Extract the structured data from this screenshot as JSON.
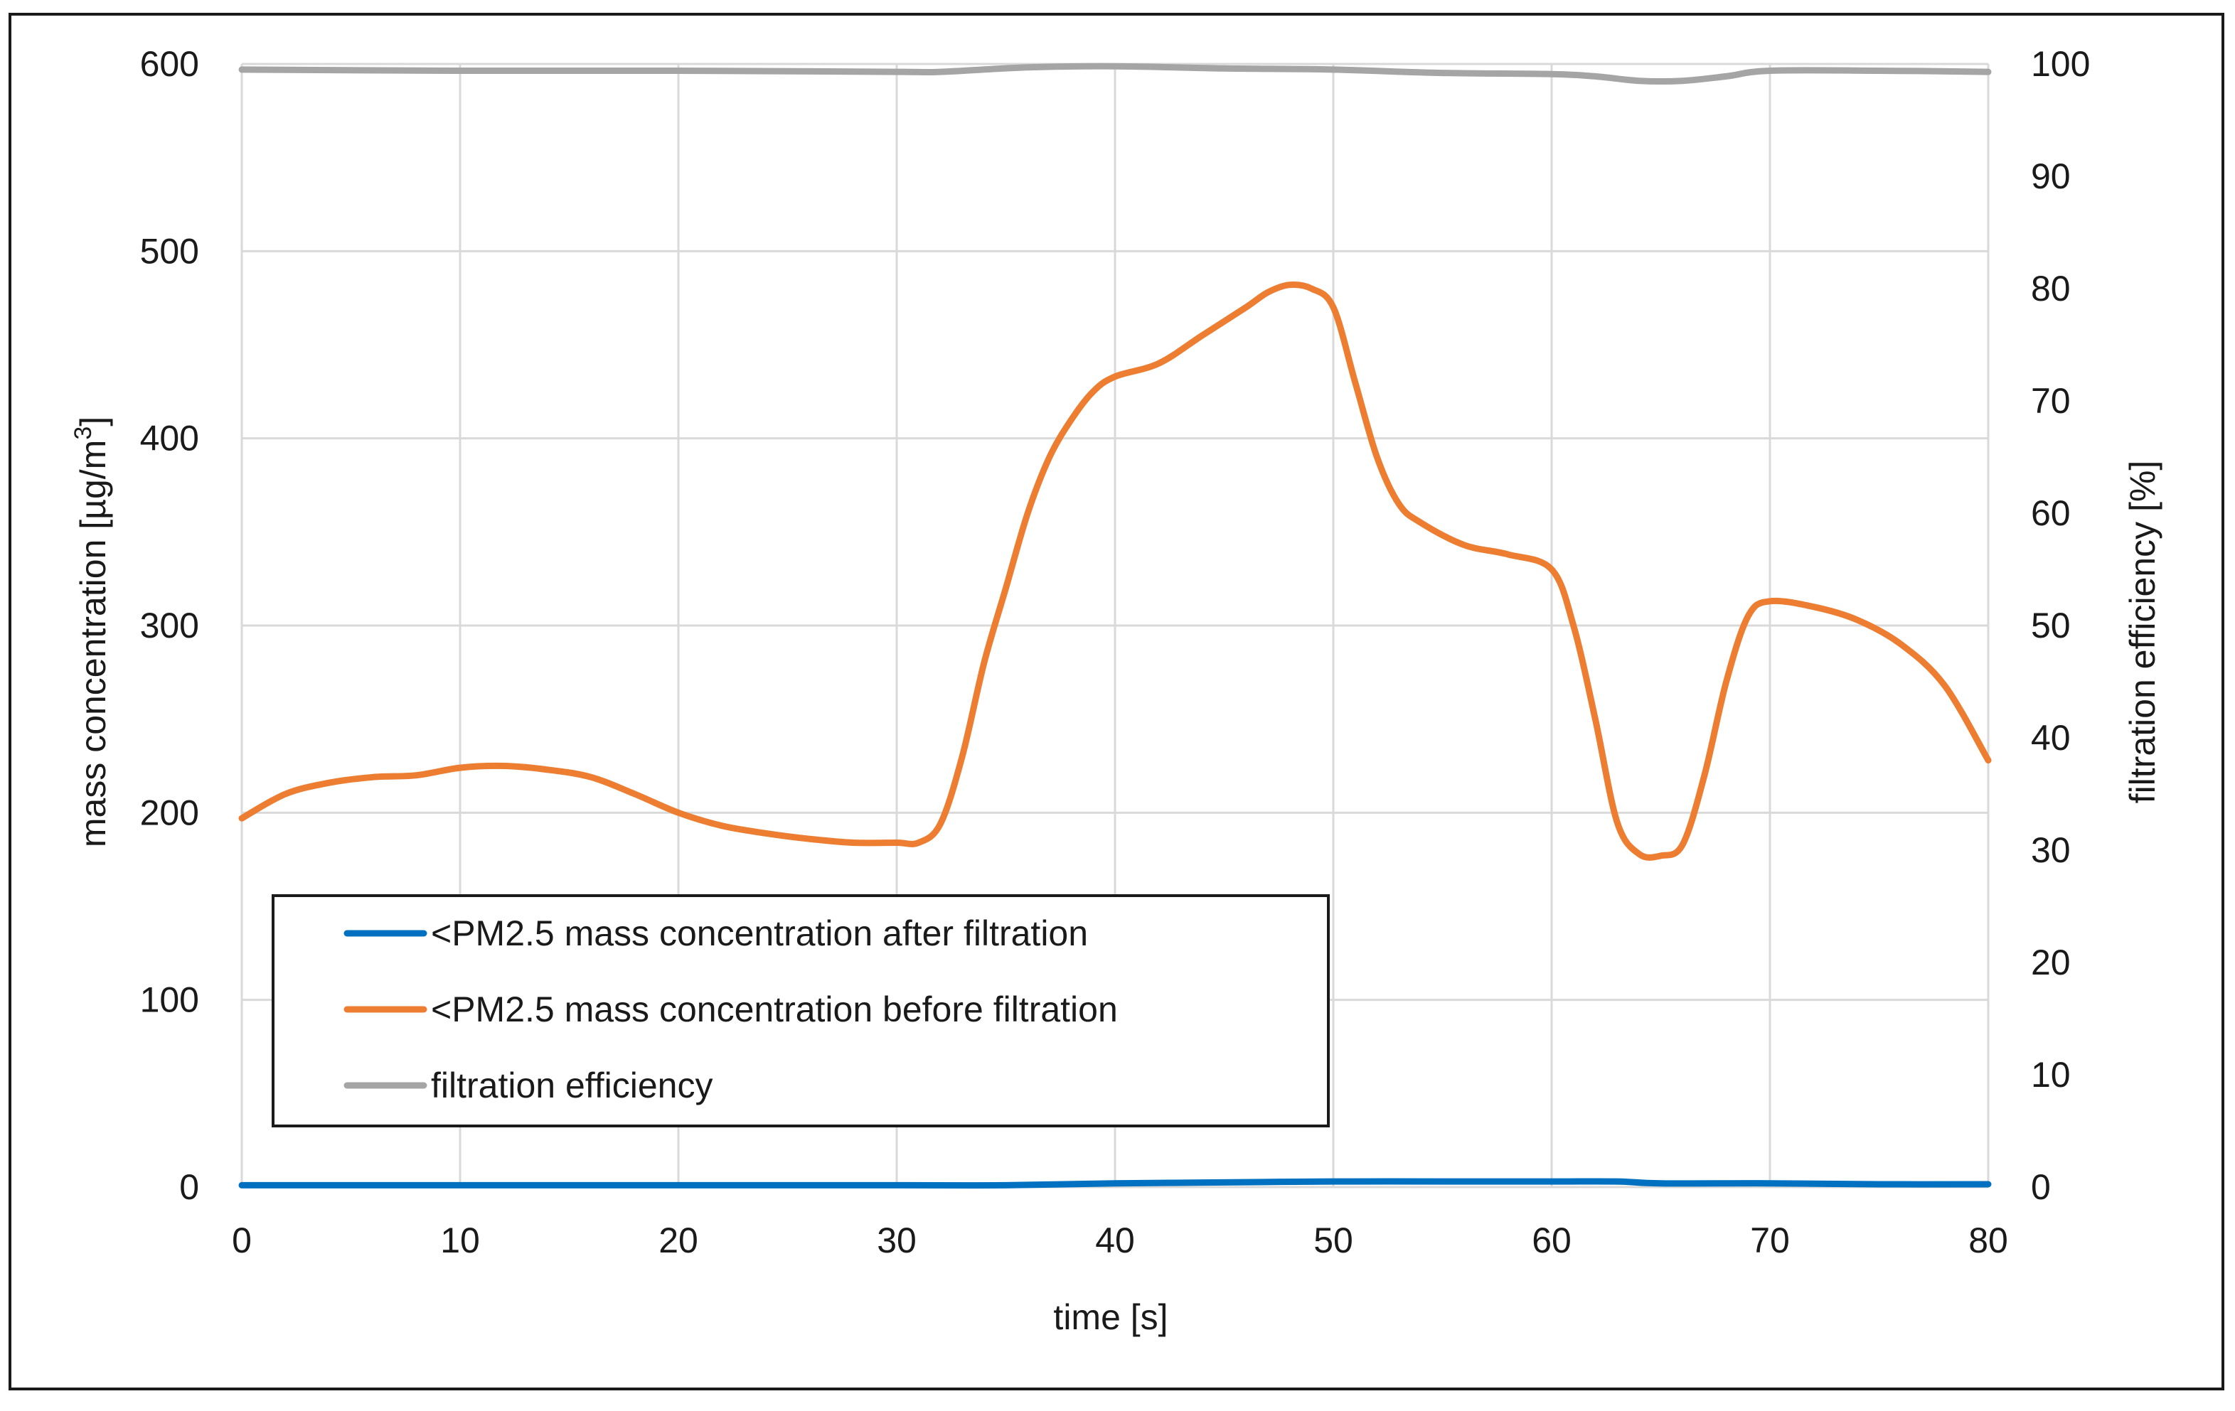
{
  "chart_data": {
    "type": "line",
    "title": "",
    "xlabel": "time [s]",
    "ylabel": "mass concentration [µg/m³]",
    "ylabel_parts": {
      "main": "mass concentration [µg/m",
      "superscript": "3",
      "close": "]"
    },
    "y2label": "filtration efficiency [%]",
    "xlim": [
      0,
      80
    ],
    "ylim": [
      0,
      600
    ],
    "y2lim": [
      0,
      100
    ],
    "x_ticks": [
      "0",
      "10",
      "20",
      "30",
      "40",
      "50",
      "60",
      "70",
      "80"
    ],
    "y_ticks": [
      "0",
      "100",
      "200",
      "300",
      "400",
      "500",
      "600"
    ],
    "y2_ticks": [
      "0",
      "10",
      "20",
      "30",
      "40",
      "50",
      "60",
      "70",
      "80",
      "90",
      "100"
    ],
    "grid": true,
    "legend_position": "lower-left",
    "series": [
      {
        "name": "<PM2.5 mass concentration after filtration",
        "axis": "left",
        "color": "#0070c0",
        "x": [
          0,
          10,
          20,
          30,
          35,
          40,
          45,
          50,
          55,
          60,
          63,
          65,
          70,
          75,
          80
        ],
        "values": [
          1,
          1,
          1,
          1,
          1,
          2,
          2.5,
          3,
          3,
          3,
          3,
          2,
          2,
          1.5,
          1.5
        ]
      },
      {
        "name": "<PM2.5 mass concentration before filtration",
        "axis": "left",
        "color": "#ed7d31",
        "x": [
          0,
          2,
          4,
          6,
          8,
          10,
          12,
          14,
          16,
          18,
          20,
          22,
          24,
          26,
          28,
          30,
          31,
          32,
          33,
          34,
          35,
          36,
          37,
          38,
          39,
          40,
          42,
          44,
          46,
          47,
          48,
          49,
          50,
          51,
          52,
          53,
          54,
          56,
          58,
          60,
          61,
          62,
          63,
          64,
          65,
          66,
          67,
          68,
          69,
          70,
          72,
          74,
          76,
          78,
          80
        ],
        "values": [
          197,
          210,
          216,
          219,
          220,
          224,
          225,
          223,
          219,
          210,
          200,
          193,
          189,
          186,
          184,
          184,
          184,
          194,
          230,
          280,
          320,
          360,
          390,
          410,
          425,
          433,
          440,
          455,
          470,
          478,
          482,
          480,
          470,
          430,
          390,
          365,
          355,
          343,
          338,
          330,
          300,
          250,
          195,
          178,
          177,
          183,
          220,
          270,
          305,
          313,
          310,
          303,
          290,
          268,
          228
        ]
      },
      {
        "name": "filtration efficiency",
        "axis": "right",
        "color": "#a5a5a5",
        "x": [
          0,
          10,
          20,
          30,
          32,
          36,
          40,
          45,
          50,
          55,
          60,
          62,
          64,
          66,
          68,
          70,
          75,
          80
        ],
        "values": [
          99.5,
          99.4,
          99.4,
          99.3,
          99.3,
          99.7,
          99.8,
          99.6,
          99.5,
          99.2,
          99.1,
          98.9,
          98.5,
          98.5,
          98.9,
          99.4,
          99.4,
          99.3
        ]
      }
    ]
  }
}
